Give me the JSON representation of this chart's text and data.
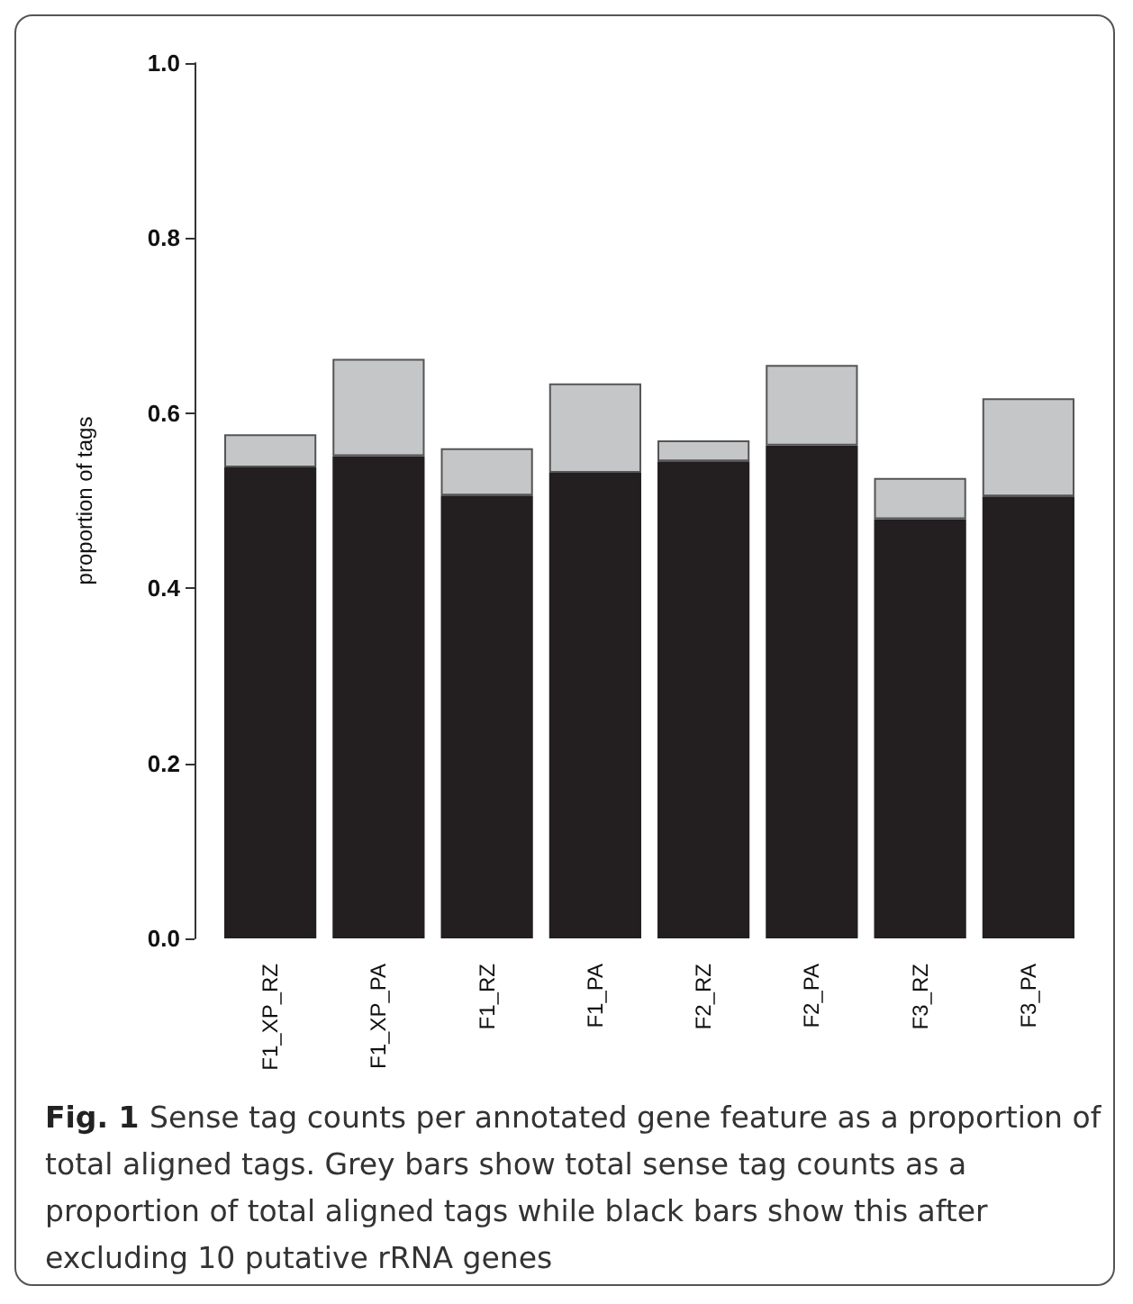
{
  "chart_data": {
    "type": "bar",
    "stacked": true,
    "ylabel": "proportion of tags",
    "categories": [
      "F1_XP_RZ",
      "F1_XP_PA",
      "F1_RZ",
      "F1_PA",
      "F2_RZ",
      "F2_PA",
      "F3_RZ",
      "F3_PA"
    ],
    "series": [
      {
        "color": "#231f20",
        "values": [
          0.538,
          0.551,
          0.506,
          0.532,
          0.545,
          0.563,
          0.479,
          0.505
        ]
      },
      {
        "color": "#c5c6c8",
        "values": [
          0.038,
          0.111,
          0.054,
          0.102,
          0.024,
          0.092,
          0.047,
          0.112
        ]
      }
    ],
    "ylim": [
      0,
      1
    ],
    "yticks": [
      {
        "value": 0,
        "label": "0.0"
      },
      {
        "value": 0.2,
        "label": "0.2"
      },
      {
        "value": 0.4,
        "label": "0.4"
      },
      {
        "value": 0.6,
        "label": "0.6"
      },
      {
        "value": 0.8,
        "label": "0.8"
      },
      {
        "value": 1,
        "label": "1.0"
      }
    ],
    "annotations": [
      "Fig. 1",
      "Sense tag counts per annotated gene feature as a proportion of total aligned tags. Grey bars show total sense tag counts as a proportion of total aligned tags while black bars show this after excluding 10 putative rRNA genes"
    ]
  }
}
